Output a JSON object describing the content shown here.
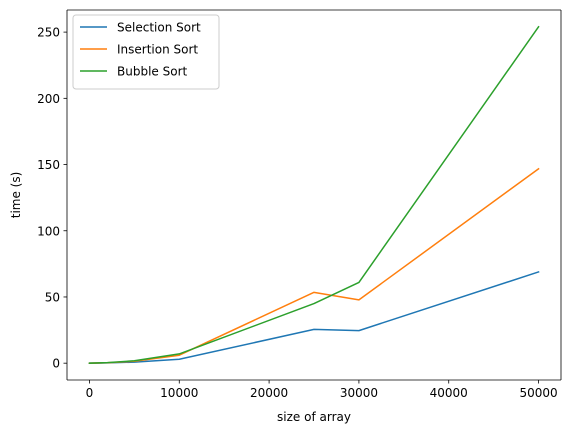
{
  "chart_data": {
    "type": "line",
    "title": "",
    "xlabel": "size of array",
    "ylabel": "time (s)",
    "x": [
      0,
      2000,
      5000,
      10000,
      25000,
      30000,
      50000
    ],
    "xlim": [
      -2500,
      52500
    ],
    "ylim": [
      -12.7,
      266.7
    ],
    "xticks": [
      0,
      10000,
      20000,
      30000,
      40000,
      50000
    ],
    "yticks": [
      0,
      50,
      100,
      150,
      200,
      250
    ],
    "grid": false,
    "legend_position": "top-left",
    "series": [
      {
        "name": "Selection Sort",
        "color": "#1f77b4",
        "values": [
          0.0,
          0.2,
          0.8,
          3.0,
          25.5,
          24.6,
          68.9
        ]
      },
      {
        "name": "Insertion Sort",
        "color": "#ff7f0e",
        "values": [
          0.0,
          0.3,
          1.5,
          6.0,
          53.5,
          47.8,
          146.8
        ]
      },
      {
        "name": "Bubble Sort",
        "color": "#2ca02c",
        "values": [
          0.0,
          0.4,
          1.8,
          7.0,
          45.0,
          61.0,
          254.0
        ]
      }
    ]
  }
}
